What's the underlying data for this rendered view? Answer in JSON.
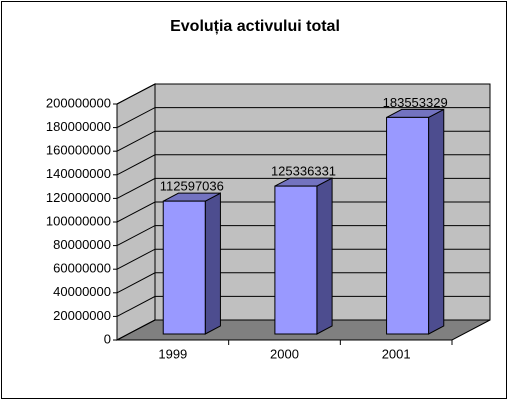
{
  "chart_data": {
    "type": "bar3d",
    "title": "Evoluția activului total",
    "categories": [
      "1999",
      "2000",
      "2001"
    ],
    "values": [
      112597036,
      125336331,
      183553329
    ],
    "color": "#9999ff",
    "ylim": [
      0,
      200000000
    ],
    "yticks": [
      0,
      20000000,
      40000000,
      60000000,
      80000000,
      100000000,
      120000000,
      140000000,
      160000000,
      180000000,
      200000000
    ],
    "grid": true
  }
}
